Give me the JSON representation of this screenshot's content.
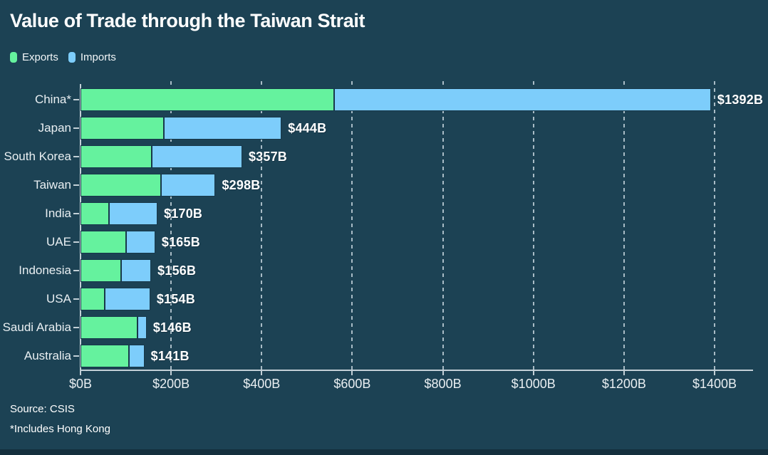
{
  "title": "Value of Trade through the Taiwan Strait",
  "legend": [
    {
      "label": "Exports",
      "color": "#65f29e"
    },
    {
      "label": "Imports",
      "color": "#7dcdfb"
    }
  ],
  "source": {
    "line1": "Source: CSIS",
    "line2": "*Includes Hong Kong"
  },
  "colors": {
    "background": "#1c4254",
    "exports": "#65f29e",
    "imports": "#7dcdfb",
    "axis": "#c3d0d7",
    "gridline": "#a9bcc6",
    "text": "#e9eff2",
    "bottom_strip": "#142f3d"
  },
  "chart_data": {
    "type": "bar",
    "orientation": "horizontal",
    "stacked": true,
    "title": "Value of Trade through the Taiwan Strait",
    "categories": [
      "China*",
      "Japan",
      "South Korea",
      "Taiwan",
      "India",
      "UAE",
      "Indonesia",
      "USA",
      "Saudi Arabia",
      "Australia"
    ],
    "series": [
      {
        "name": "Exports",
        "color": "#65f29e",
        "values": [
          560,
          184,
          157,
          178,
          63,
          100,
          90,
          53,
          126,
          107
        ]
      },
      {
        "name": "Imports",
        "color": "#7dcdfb",
        "values": [
          832,
          260,
          200,
          120,
          107,
          65,
          66,
          101,
          20,
          34
        ]
      }
    ],
    "totals": [
      1392,
      444,
      357,
      298,
      170,
      165,
      156,
      154,
      146,
      141
    ],
    "total_labels": [
      "$1392B",
      "$444B",
      "$357B",
      "$298B",
      "$170B",
      "$165B",
      "$156B",
      "$154B",
      "$146B",
      "$141B"
    ],
    "x_tick_values": [
      0,
      200,
      400,
      600,
      800,
      1000,
      1200,
      1400
    ],
    "x_tick_labels": [
      "$0B",
      "$200B",
      "$400B",
      "$600B",
      "$800B",
      "$1000B",
      "$1200B",
      "$1400B"
    ],
    "xlim": [
      0,
      1400
    ],
    "unit": "USD billions",
    "grid": "dashed-vertical",
    "legend_position": "top-left"
  }
}
